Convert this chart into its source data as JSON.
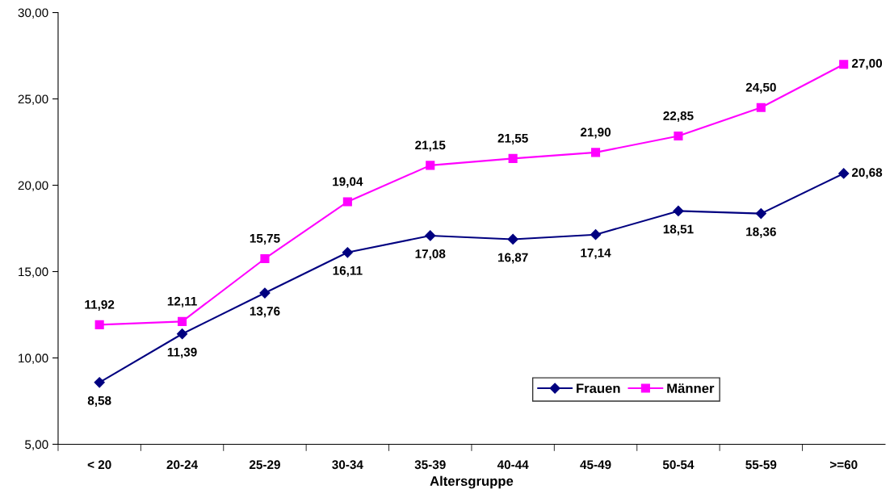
{
  "chart_data": {
    "type": "line",
    "xlabel": "Altersgruppe",
    "categories": [
      "< 20",
      "20-24",
      "25-29",
      "30-34",
      "35-39",
      "40-44",
      "45-49",
      "50-54",
      "55-59",
      ">=60"
    ],
    "series": [
      {
        "name": "Frauen",
        "color": "#000080",
        "marker": "diamond",
        "values": [
          8.58,
          11.39,
          13.76,
          16.11,
          17.08,
          16.87,
          17.14,
          18.51,
          18.36,
          20.68
        ],
        "value_labels": [
          "8,58",
          "11,39",
          "13,76",
          "16,11",
          "17,08",
          "16,87",
          "17,14",
          "18,51",
          "18,36",
          "20,68"
        ]
      },
      {
        "name": "Männer",
        "color": "#ff00ff",
        "marker": "square",
        "values": [
          11.92,
          12.11,
          15.75,
          19.04,
          21.15,
          21.55,
          21.9,
          22.85,
          24.5,
          27.0
        ],
        "value_labels": [
          "11,92",
          "12,11",
          "15,75",
          "19,04",
          "21,15",
          "21,55",
          "21,90",
          "22,85",
          "24,50",
          "27,00"
        ]
      }
    ],
    "ylim": [
      5,
      30
    ],
    "yticks": [
      {
        "value": 5,
        "label": "5,00"
      },
      {
        "value": 10,
        "label": "10,00"
      },
      {
        "value": 15,
        "label": "15,00"
      },
      {
        "value": 20,
        "label": "20,00"
      },
      {
        "value": 25,
        "label": "25,00"
      },
      {
        "value": 30,
        "label": "30,00"
      }
    ],
    "grid": false,
    "legend": "bottom right",
    "line_style": "solid"
  }
}
